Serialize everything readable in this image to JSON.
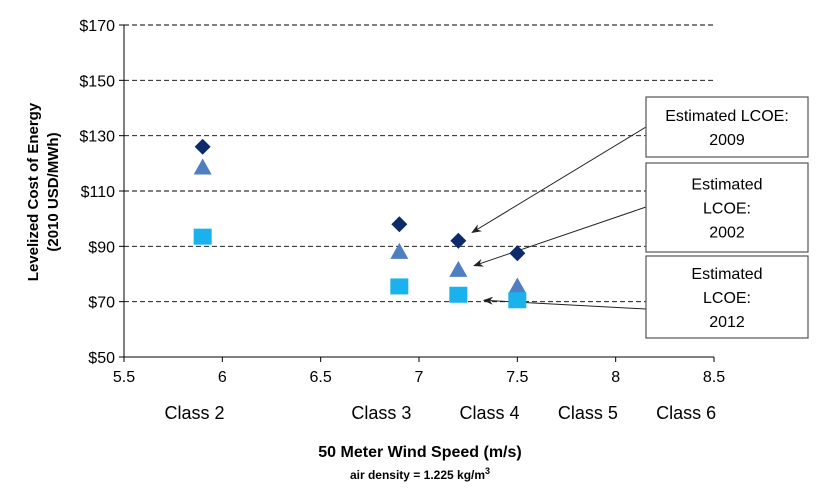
{
  "chart_data": {
    "type": "scatter",
    "xlabel": "50 Meter Wind Speed (m/s)",
    "xsublabel_prefix": "air density = 1.225 kg/m",
    "xsublabel_sup": "3",
    "ylabel_line1": "Levelized Cost of Energy",
    "ylabel_line2": "(2010 USD/MWh)",
    "xlim": [
      5.5,
      8.5
    ],
    "ylim": [
      50,
      170
    ],
    "x_ticks": [
      5.5,
      6,
      6.5,
      7,
      7.5,
      8,
      8.5
    ],
    "x_tick_labels": [
      "5.5",
      "6",
      "6.5",
      "7",
      "7.5",
      "8",
      "8.5"
    ],
    "y_ticks": [
      50,
      70,
      90,
      110,
      130,
      150,
      170
    ],
    "y_tick_labels": [
      "$50",
      "$70",
      "$90",
      "$110",
      "$130",
      "$150",
      "$170"
    ],
    "grid": "horizontal dashed",
    "class_labels": [
      {
        "x": 5.95,
        "label": "Class 2"
      },
      {
        "x": 6.9,
        "label": "Class 3"
      },
      {
        "x": 7.45,
        "label": "Class 4"
      },
      {
        "x": 7.95,
        "label": "Class 5"
      },
      {
        "x": 8.45,
        "label": "Class 6"
      }
    ],
    "series": [
      {
        "marker": "diamond",
        "color": "#0d2b6b",
        "x": [
          5.9,
          6.9,
          7.2,
          7.5
        ],
        "y": [
          126,
          98,
          92,
          87.5
        ]
      },
      {
        "marker": "triangle",
        "color": "#4f7fbe",
        "x": [
          5.9,
          6.9,
          7.2,
          7.5
        ],
        "y": [
          118.5,
          88,
          81.5,
          75.5
        ]
      },
      {
        "marker": "square",
        "color": "#1ab2ec",
        "x": [
          5.9,
          6.9,
          7.2,
          7.5
        ],
        "y": [
          93.5,
          75.5,
          72.5,
          70.5
        ]
      }
    ],
    "annotations": [
      {
        "lines": [
          "Estimated LCOE:",
          "2009"
        ],
        "target": {
          "x": 7.27,
          "y": 95
        }
      },
      {
        "lines": [
          "Estimated",
          "LCOE:",
          "2002"
        ],
        "target": {
          "x": 7.28,
          "y": 83
        }
      },
      {
        "lines": [
          "Estimated",
          "LCOE:",
          "2012"
        ],
        "target": {
          "x": 7.33,
          "y": 70.5
        }
      }
    ]
  }
}
